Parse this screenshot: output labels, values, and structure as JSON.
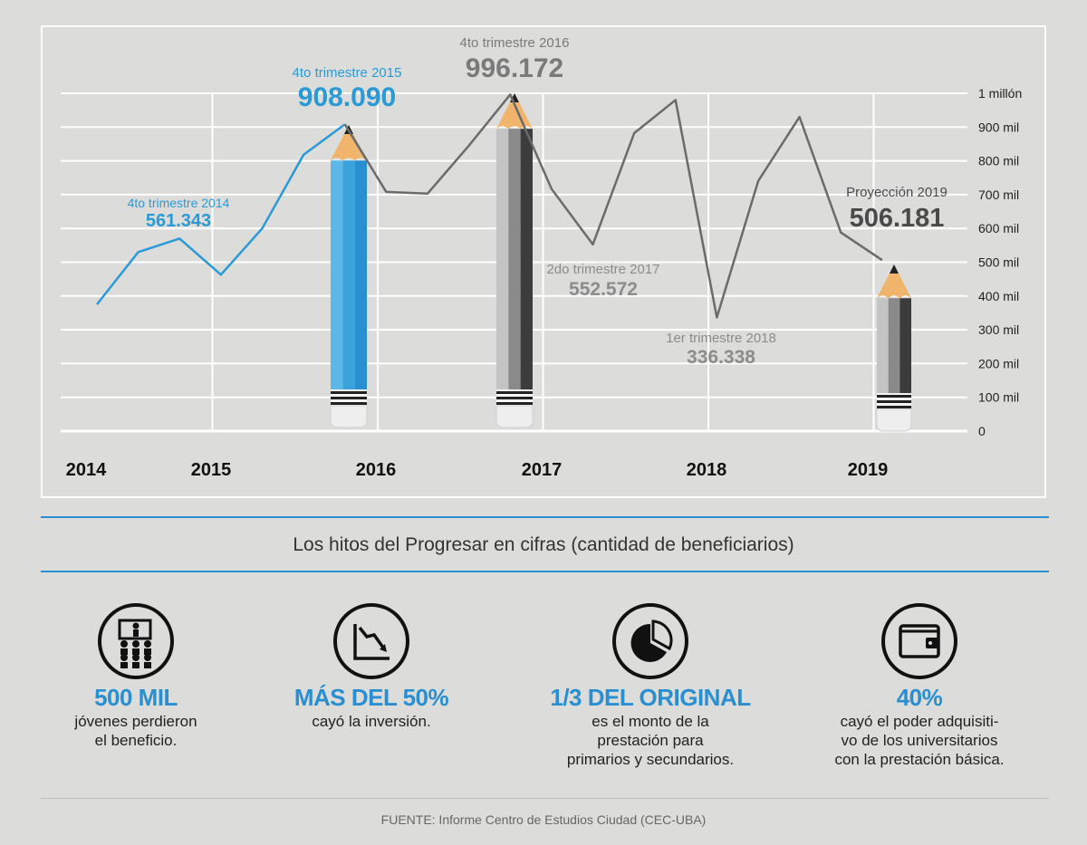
{
  "chart_data": {
    "type": "line",
    "y_ticks": [
      "0",
      "100 mil",
      "200 mil",
      "300 mil",
      "400 mil",
      "500 mil",
      "600 mil",
      "700 mil",
      "800 mil",
      "900 mil",
      "1 millón"
    ],
    "ylim": [
      0,
      1000000
    ],
    "x_labels": [
      "2014",
      "2015",
      "2016",
      "2017",
      "2018",
      "2019"
    ],
    "grid": true,
    "series": [
      {
        "color": "#2a9ad6",
        "points": [
          [
            2014.0,
            375000
          ],
          [
            2014.25,
            530000
          ],
          [
            2014.5,
            570000
          ],
          [
            2014.75,
            463000
          ],
          [
            2015.0,
            600000
          ],
          [
            2015.25,
            818000
          ],
          [
            2015.5,
            908090
          ]
        ]
      },
      {
        "color": "#6b6b6b",
        "points": [
          [
            2015.5,
            908090
          ],
          [
            2015.75,
            708000
          ],
          [
            2016.0,
            703000
          ],
          [
            2016.25,
            845000
          ],
          [
            2016.5,
            996172
          ],
          [
            2016.75,
            717000
          ],
          [
            2017.0,
            552572
          ],
          [
            2017.25,
            882000
          ],
          [
            2017.5,
            980000
          ],
          [
            2017.75,
            336338
          ],
          [
            2018.0,
            740000
          ],
          [
            2018.25,
            930000
          ],
          [
            2018.5,
            588000
          ],
          [
            2018.75,
            506181
          ]
        ]
      }
    ],
    "annotations": [
      {
        "label": "4to trimestre 2014",
        "value": "561.343",
        "color": "#2a9ad6"
      },
      {
        "label": "4to trimestre 2015",
        "value": "908.090",
        "color": "#2a9ad6"
      },
      {
        "label": "4to trimestre 2016",
        "value": "996.172",
        "color": "#7a7a7a"
      },
      {
        "label": "2do trimestre 2017",
        "value": "552.572",
        "color": "#8c8c8c"
      },
      {
        "label": "1er trimestre 2018",
        "value": "336.338",
        "color": "#8c8c8c"
      },
      {
        "label": "Proyección 2019",
        "value": "506.181",
        "color": "#4a4a4a"
      }
    ]
  },
  "subtitle": "Los hitos del Progresar en cifras (cantidad de beneficiarios)",
  "stats": [
    {
      "icon": "people-group-icon",
      "big": "500 MIL",
      "desc": "jóvenes perdieron\nel beneficio."
    },
    {
      "icon": "trend-down-icon",
      "big": "MÁS DEL 50%",
      "desc": "cayó la inversión."
    },
    {
      "icon": "pie-chart-icon",
      "big": "1/3 DEL ORIGINAL",
      "desc": "es el monto de la\nprestación para\nprimarios y secundarios."
    },
    {
      "icon": "wallet-icon",
      "big": "40%",
      "desc": "cayó el poder adquisiti-\nvo de los universitarios\ncon la prestación básica."
    }
  ],
  "source": "FUENTE: Informe Centro de Estudios Ciudad (CEC-UBA)",
  "colors": {
    "accent": "#2a8fd0",
    "background": "#dcdcdb",
    "grid": "#ffffff"
  }
}
